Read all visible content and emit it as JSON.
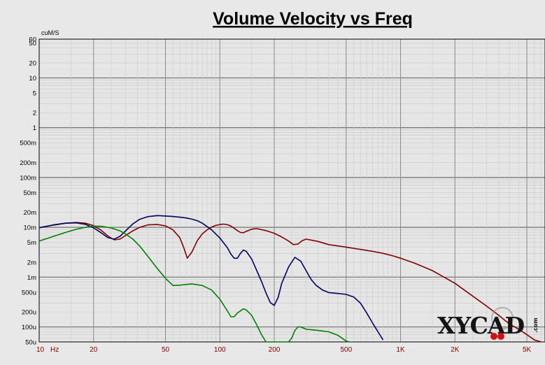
{
  "chart_data": {
    "type": "line",
    "title": "Volume Velocity vs Freq",
    "y_unit_label": "cuM/S",
    "x_scale": "log",
    "y_scale": "log",
    "xlim": [
      10,
      6300
    ],
    "ylim": [
      5e-05,
      60
    ],
    "x_ticks": [
      {
        "value": 10,
        "label": "10"
      },
      {
        "value": 20,
        "label": "20"
      },
      {
        "value": 50,
        "label": "50"
      },
      {
        "value": 100,
        "label": "100"
      },
      {
        "value": 200,
        "label": "200"
      },
      {
        "value": 500,
        "label": "500"
      },
      {
        "value": 1000,
        "label": "1K"
      },
      {
        "value": 2000,
        "label": "2K"
      },
      {
        "value": 5000,
        "label": "5K"
      }
    ],
    "x_unit_label": "Hz",
    "y_ticks": [
      {
        "value": 60,
        "label": "60"
      },
      {
        "value": 50,
        "label": "50"
      },
      {
        "value": 20,
        "label": "20"
      },
      {
        "value": 10,
        "label": "10"
      },
      {
        "value": 5,
        "label": "5"
      },
      {
        "value": 2,
        "label": "2"
      },
      {
        "value": 1,
        "label": "1"
      },
      {
        "value": 0.5,
        "label": "500m"
      },
      {
        "value": 0.2,
        "label": "200m"
      },
      {
        "value": 0.1,
        "label": "100m"
      },
      {
        "value": 0.05,
        "label": "50m"
      },
      {
        "value": 0.02,
        "label": "20m"
      },
      {
        "value": 0.01,
        "label": "10m"
      },
      {
        "value": 0.005,
        "label": "5m"
      },
      {
        "value": 0.002,
        "label": "2m"
      },
      {
        "value": 0.001,
        "label": "1m"
      },
      {
        "value": 0.0005,
        "label": "500u"
      },
      {
        "value": 0.0002,
        "label": "200u"
      },
      {
        "value": 0.0001,
        "label": "100u"
      },
      {
        "value": 5e-05,
        "label": "50u"
      }
    ],
    "grid": true,
    "series": [
      {
        "color": "#800000",
        "x": [
          10,
          12,
          14,
          16,
          18,
          20,
          22,
          24,
          26,
          28,
          30,
          33,
          36,
          40,
          45,
          50,
          55,
          60,
          63,
          66,
          70,
          75,
          80,
          85,
          90,
          95,
          100,
          105,
          110,
          115,
          120,
          125,
          130,
          135,
          140,
          150,
          160,
          180,
          200,
          220,
          240,
          255,
          270,
          285,
          300,
          350,
          400,
          500,
          600,
          700,
          800,
          900,
          1000,
          1200,
          1500,
          2000,
          2500,
          3000,
          3500,
          4000,
          4500,
          5000,
          5500,
          6000
        ],
        "y": [
          0.0098,
          0.0111,
          0.0121,
          0.0125,
          0.0121,
          0.0108,
          0.0088,
          0.0067,
          0.0056,
          0.0058,
          0.0068,
          0.0085,
          0.01,
          0.0112,
          0.0114,
          0.0107,
          0.0089,
          0.0062,
          0.004,
          0.0024,
          0.0032,
          0.0054,
          0.0074,
          0.0089,
          0.0101,
          0.0109,
          0.0114,
          0.0116,
          0.0113,
          0.0106,
          0.0096,
          0.0086,
          0.0079,
          0.0078,
          0.0083,
          0.0092,
          0.0094,
          0.0086,
          0.0076,
          0.0064,
          0.0053,
          0.0045,
          0.0046,
          0.0054,
          0.0058,
          0.0052,
          0.0045,
          0.004,
          0.0036,
          0.0033,
          0.003,
          0.0027,
          0.0024,
          0.0019,
          0.00135,
          0.00075,
          0.00042,
          0.00026,
          0.00017,
          0.000115,
          9e-05,
          7e-05,
          5.5e-05,
          5e-05
        ]
      },
      {
        "color": "#000060",
        "x": [
          10,
          12,
          14,
          16,
          18,
          20,
          22,
          24,
          26,
          28,
          30,
          33,
          36,
          40,
          45,
          50,
          55,
          60,
          65,
          70,
          75,
          80,
          90,
          100,
          110,
          115,
          120,
          125,
          130,
          135,
          140,
          150,
          160,
          170,
          180,
          190,
          200,
          210,
          220,
          240,
          260,
          280,
          300,
          320,
          340,
          370,
          400,
          450,
          500,
          550,
          600,
          650,
          700,
          750,
          800
        ],
        "y": [
          0.0098,
          0.0112,
          0.0121,
          0.0123,
          0.0115,
          0.0098,
          0.0078,
          0.0062,
          0.0058,
          0.0066,
          0.0084,
          0.0117,
          0.0145,
          0.0164,
          0.0172,
          0.0169,
          0.0165,
          0.016,
          0.0154,
          0.0146,
          0.0136,
          0.0121,
          0.0089,
          0.0061,
          0.0039,
          0.0029,
          0.0024,
          0.0024,
          0.003,
          0.0035,
          0.0033,
          0.0023,
          0.00135,
          0.00082,
          0.00048,
          0.00031,
          0.00027,
          0.00039,
          0.00075,
          0.0016,
          0.0025,
          0.0021,
          0.00135,
          0.0009,
          0.00069,
          0.00055,
          0.00049,
          0.00047,
          0.00045,
          0.0004,
          0.0003,
          0.00019,
          0.00012,
          8e-05,
          5.5e-05
        ]
      },
      {
        "color": "#008000",
        "x": [
          10,
          12,
          14,
          16,
          18,
          20,
          22,
          25,
          28,
          30,
          33,
          36,
          40,
          45,
          50,
          55,
          60,
          70,
          80,
          90,
          100,
          110,
          115,
          120,
          125,
          130,
          135,
          140,
          150,
          160,
          170,
          180,
          190,
          200,
          210,
          220,
          230,
          240,
          250,
          260,
          270,
          280,
          300,
          350,
          400,
          450,
          500,
          520
        ],
        "y": [
          0.0053,
          0.0066,
          0.0079,
          0.0091,
          0.01,
          0.0106,
          0.0105,
          0.0097,
          0.0085,
          0.0074,
          0.0058,
          0.0042,
          0.0026,
          0.0015,
          0.00095,
          0.00068,
          0.00069,
          0.00073,
          0.00068,
          0.00055,
          0.00036,
          0.00021,
          0.00016,
          0.00016,
          0.00019,
          0.00021,
          0.00023,
          0.00022,
          0.00017,
          0.00011,
          7e-05,
          5e-05,
          4e-05,
          3.5e-05,
          3e-05,
          3e-05,
          3e-05,
          4e-05,
          6e-05,
          8.5e-05,
          0.0001,
          0.0001,
          9e-05,
          8.5e-05,
          8e-05,
          6.8e-05,
          5.2e-05,
          5e-05
        ]
      }
    ]
  },
  "watermark": {
    "text": "XYCAD",
    "suffix": ".com"
  }
}
